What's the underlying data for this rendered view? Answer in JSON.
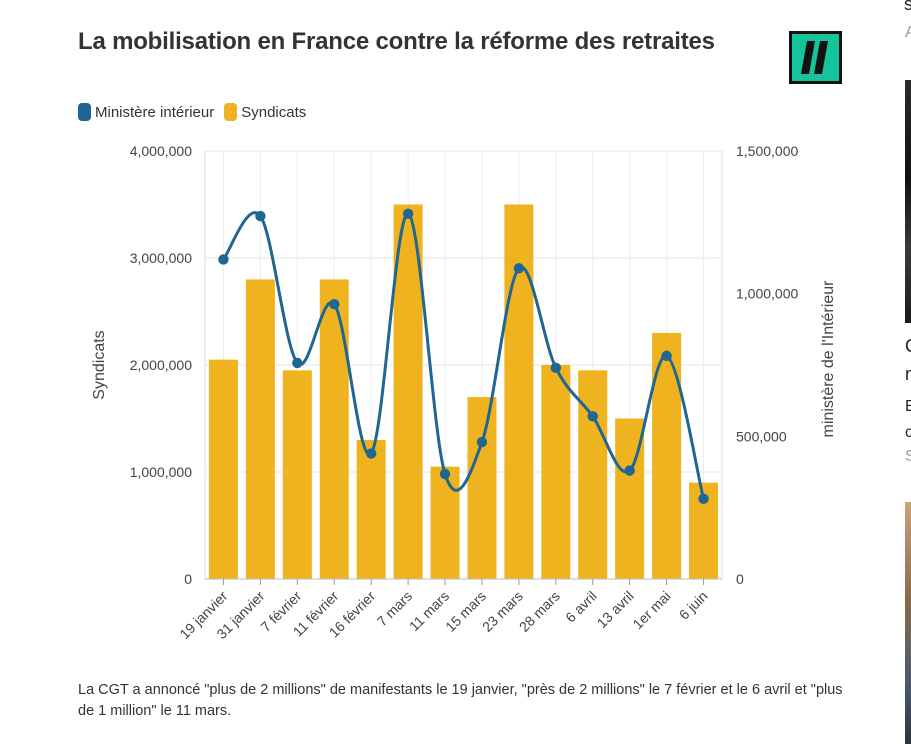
{
  "title": "La mobilisation en France contre la réforme des retraites",
  "legend": {
    "interior": "Ministère intérieur",
    "syndicats": "Syndicats"
  },
  "colors": {
    "interior": "#1f6690",
    "syndicats": "#efb320",
    "logo": "#16c39a"
  },
  "note": "La CGT a annoncé \"plus de 2 millions\" de manifestants le 19 janvier, \"près de 2 millions\" le 7 février et le 6 avril et \"plus de 1 million\" le 11 mars.",
  "sidebar": {
    "c1": "s",
    "c2": "A",
    "c3": "C",
    "c4": "n",
    "c5": "E",
    "c6": "c",
    "c7": "S"
  },
  "chart_data": {
    "type": "bar+line",
    "categories": [
      "19 janvier",
      "31 janvier",
      "7 février",
      "11 février",
      "16 février",
      "7 mars",
      "11 mars",
      "15 mars",
      "23 mars",
      "28 mars",
      "6 avril",
      "13 avril",
      "1er mai",
      "6 juin"
    ],
    "series": [
      {
        "name": "Syndicats",
        "type": "bar",
        "axis": "left",
        "values": [
          2050000,
          2800000,
          1950000,
          2800000,
          1300000,
          3500000,
          1050000,
          1700000,
          3500000,
          2000000,
          1950000,
          1500000,
          2300000,
          900000
        ]
      },
      {
        "name": "Ministère intérieur",
        "type": "line",
        "axis": "right",
        "values": [
          1120000,
          1272000,
          757000,
          963000,
          440000,
          1280000,
          368000,
          480000,
          1089000,
          740000,
          570000,
          380000,
          782000,
          281000
        ]
      }
    ],
    "ylabel_left": "Syndicats",
    "ylabel_right": "ministère de l'Intérieur",
    "ylim_left": [
      0,
      4000000
    ],
    "ylim_right": [
      0,
      1500000
    ],
    "yticks_left": [
      "0",
      "1,000,000",
      "2,000,000",
      "3,000,000",
      "4,000,000"
    ],
    "yticks_right": [
      "0",
      "500,000",
      "1,000,000",
      "1,500,000"
    ],
    "grid": true,
    "legend_position": "top-left"
  }
}
